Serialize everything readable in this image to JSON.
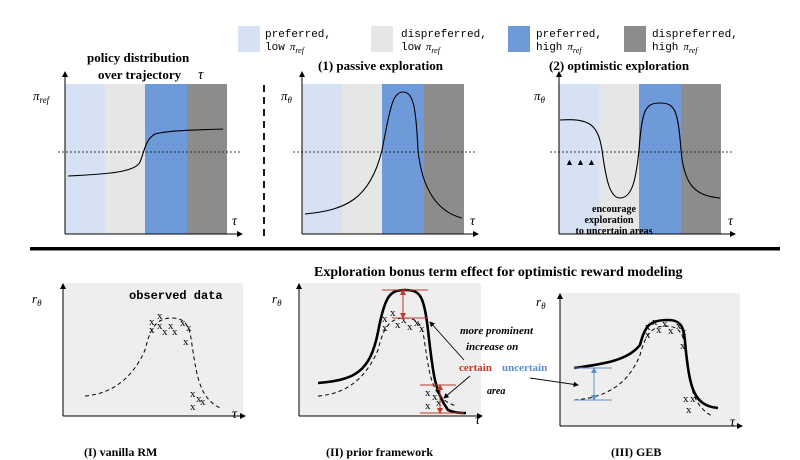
{
  "legend": [
    {
      "line1": "preferred,",
      "line2": "low",
      "pi_sub": "ref",
      "color": "#d6e2f4"
    },
    {
      "line1": "dispreferred,",
      "line2": "low",
      "pi_sub": "ref",
      "color": "#e6e6e6"
    },
    {
      "line1": "preferred,",
      "line2": "high",
      "pi_sub": "ref",
      "color": "#6f9ad9"
    },
    {
      "line1": "dispreferred,",
      "line2": "high",
      "pi_sub": "ref",
      "color": "#8c8c8c"
    }
  ],
  "top": {
    "panel1_caption_line1": "policy distribution",
    "panel1_caption_line2": "over trajectory",
    "panel2_title": "(1) passive exploration",
    "panel3_title": "(2) optimistic exploration",
    "ylabel_ref": "π",
    "ylabel_ref_sub": "ref",
    "ylabel_theta": "π",
    "ylabel_theta_sub": "θ",
    "xlabel": "τ",
    "encourage_line1": "encourage",
    "encourage_line2": "exploration",
    "encourage_line3": "to uncertain areas"
  },
  "bottom": {
    "title": "Exploration bonus term effect for optimistic reward modeling",
    "ylabel": "r",
    "ylabel_sub": "θ",
    "xlabel": "τ",
    "observed_label": "observed data",
    "marker": "x",
    "annot_line1": "more prominent",
    "annot_line2": "increase on",
    "certain": "certain",
    "uncertain": "uncertain",
    "area": "area",
    "caption1": "(I) vanilla RM",
    "caption2": "(II) prior framework",
    "caption3": "(III) GEB"
  },
  "colors": {
    "certain": "#c0392b",
    "uncertain": "#5b8fd0",
    "bottom_bg": "#eeeeee"
  }
}
